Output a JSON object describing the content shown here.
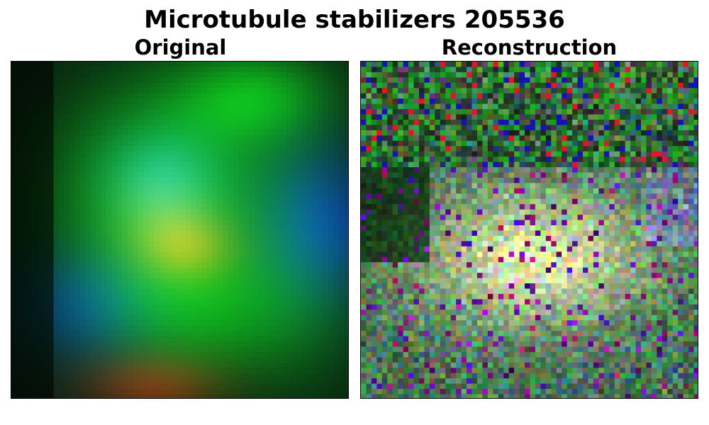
{
  "figure": {
    "title": "Microtubule stabilizers 205536"
  },
  "panels": [
    {
      "title": "Original"
    },
    {
      "title": "Reconstruction"
    }
  ]
}
